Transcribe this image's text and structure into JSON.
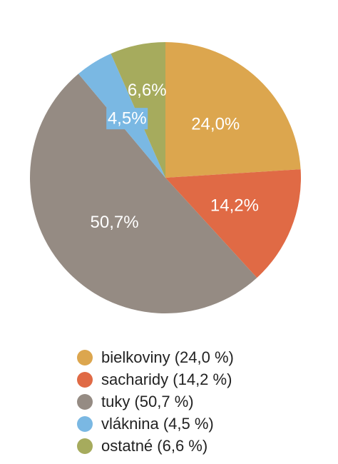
{
  "chart_data": {
    "type": "pie",
    "start_angle": "12 o'clock",
    "direction": "clockwise",
    "slices": [
      {
        "label": "bielkoviny",
        "value": 24.0,
        "value_label": "24,0%",
        "legend": "bielkoviny (24,0 %)",
        "color": "#dca64e"
      },
      {
        "label": "sacharidy",
        "value": 14.2,
        "value_label": "14,2%",
        "legend": "sacharidy (14,2 %)",
        "color": "#e06a45"
      },
      {
        "label": "tuky",
        "value": 50.7,
        "value_label": "50,7%",
        "legend": "tuky (50,7 %)",
        "color": "#958b83"
      },
      {
        "label": "vláknina",
        "value": 4.5,
        "value_label": "4,5%",
        "legend": "vláknina (4,5 %)",
        "color": "#7ab8e3"
      },
      {
        "label": "ostatné",
        "value": 6.6,
        "value_label": "6,6%",
        "legend": "ostatné (6,6 %)",
        "color": "#a6ab5d"
      }
    ],
    "legend_position": "bottom"
  }
}
